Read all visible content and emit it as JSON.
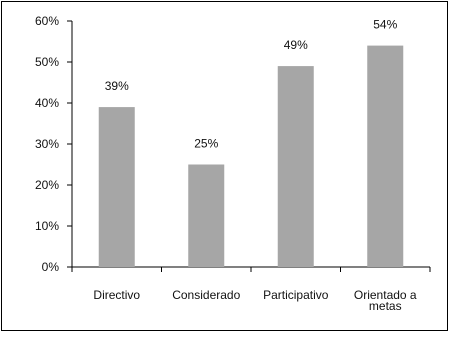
{
  "chart_data": {
    "type": "bar",
    "categories": [
      "Directivo",
      "Considerado",
      "Participativo",
      "Orientado a metas"
    ],
    "category_lines": [
      [
        "Directivo"
      ],
      [
        "Considerado"
      ],
      [
        "Participativo"
      ],
      [
        "Orientado a",
        "metas"
      ]
    ],
    "values": [
      39,
      25,
      49,
      54
    ],
    "value_labels": [
      "39%",
      "25%",
      "49%",
      "54%"
    ],
    "y_ticks": [
      0,
      10,
      20,
      30,
      40,
      50,
      60
    ],
    "y_tick_labels": [
      "0%",
      "10%",
      "20%",
      "30%",
      "40%",
      "50%",
      "60%"
    ],
    "ylim": [
      0,
      60
    ],
    "grid": false,
    "legend": "none",
    "title": "",
    "xlabel": "",
    "ylabel": ""
  },
  "colors": {
    "bar": "#a6a6a6",
    "axis": "#000000",
    "frame": "#000000",
    "text": "#111111"
  }
}
